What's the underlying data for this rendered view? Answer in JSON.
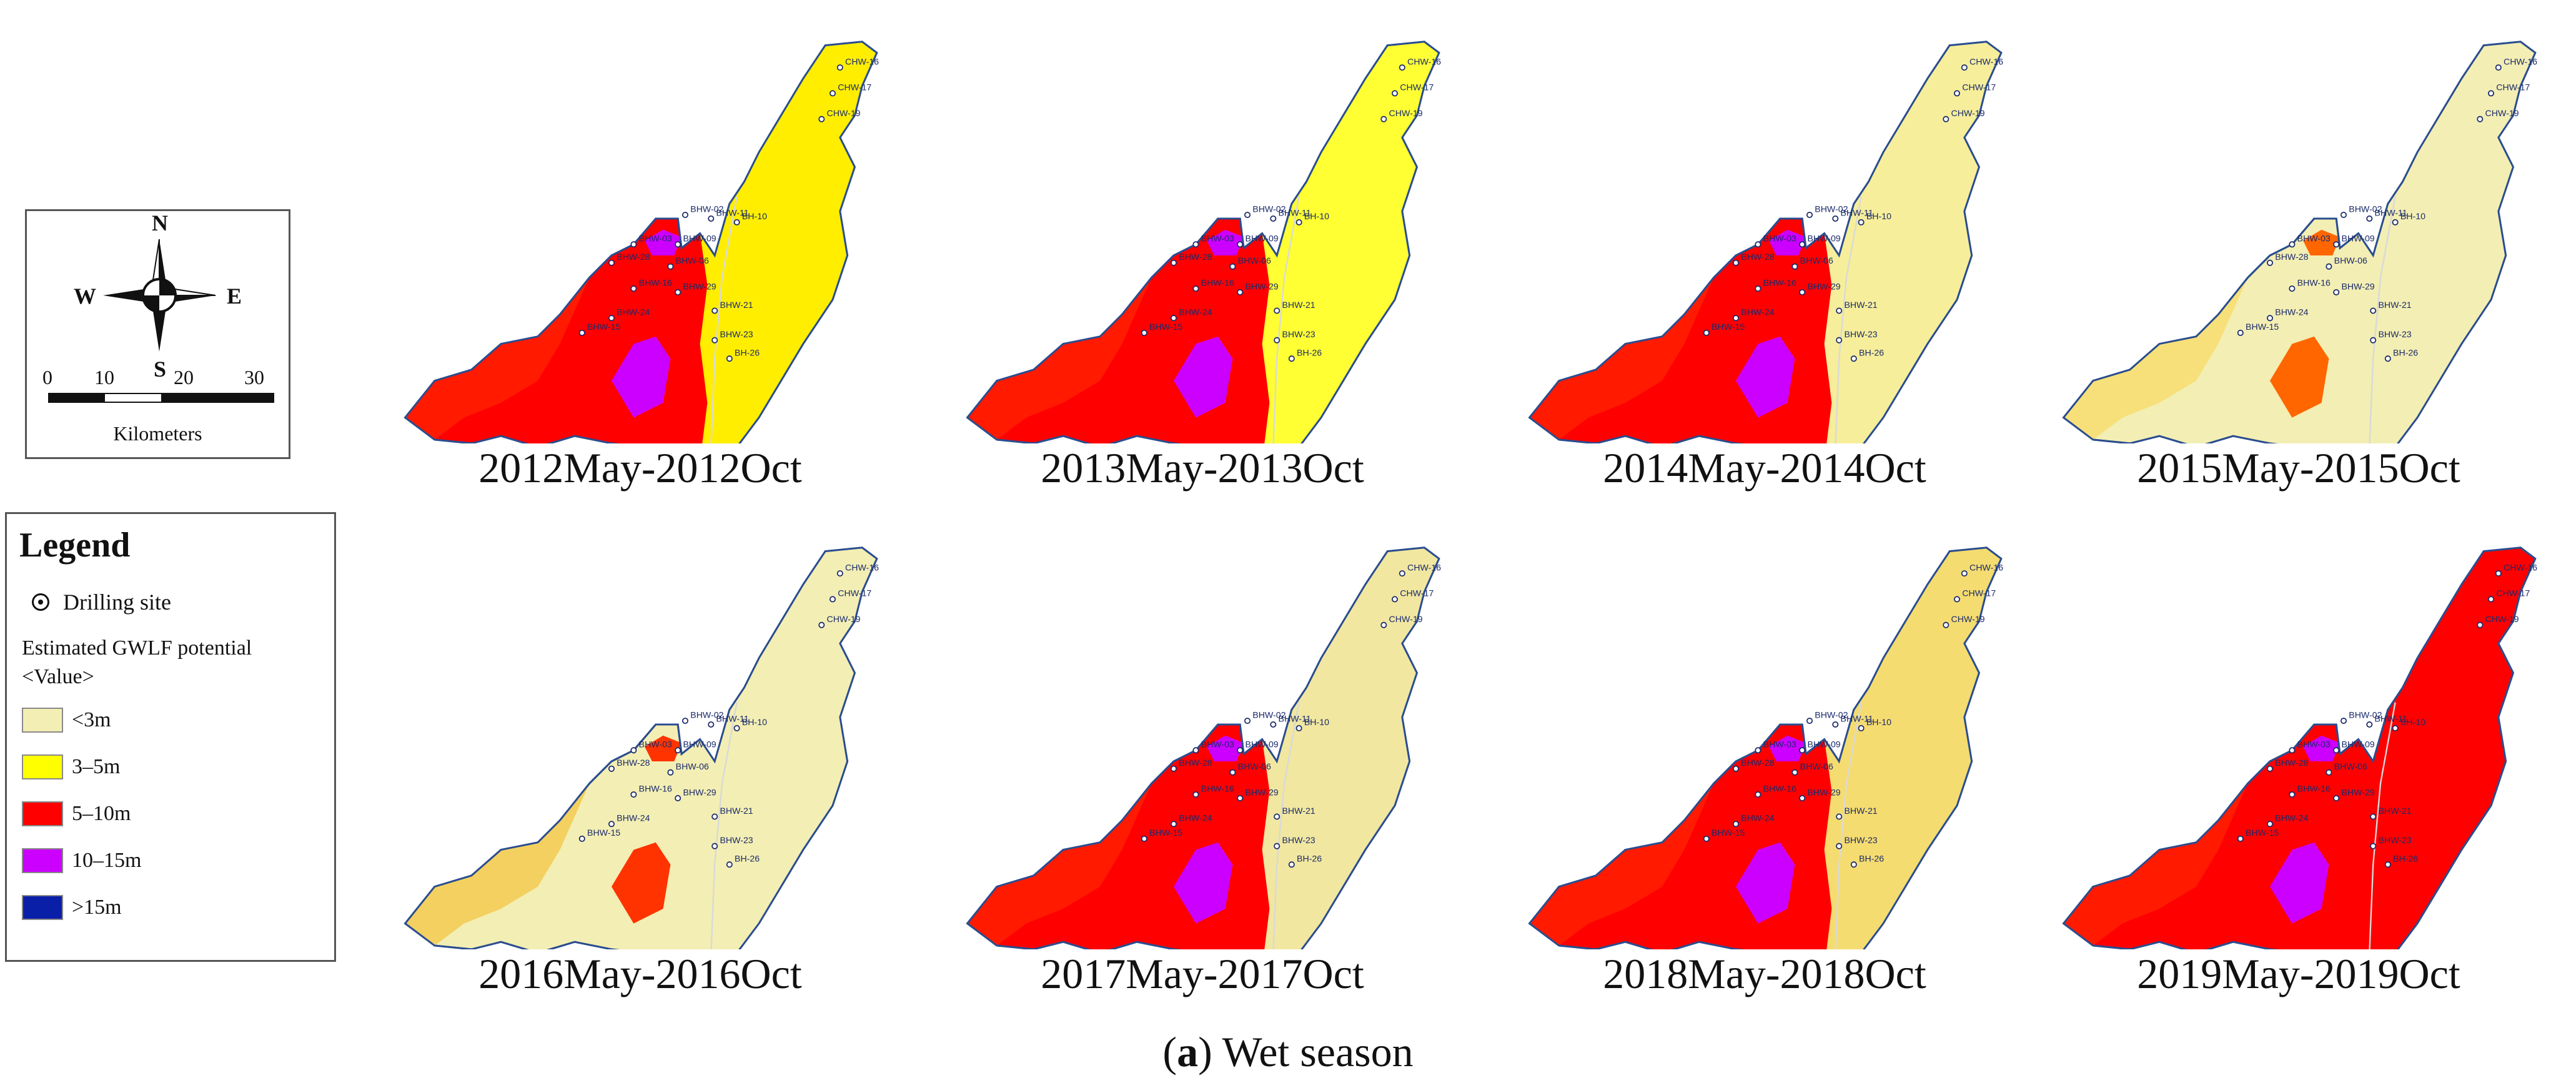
{
  "compass": {
    "north": "N",
    "south": "S",
    "east": "E",
    "west": "W",
    "scale_ticks": [
      "0",
      "10",
      "20",
      "30"
    ],
    "scale_unit": "Kilometers"
  },
  "legend": {
    "title": "Legend",
    "site_label": "Drilling site",
    "field_label": "Estimated GWLF potential",
    "value_label": "<Value>",
    "classes": [
      {
        "label": "<3m",
        "color": "#f3eeb3"
      },
      {
        "label": "3–5m",
        "color": "#ffff00"
      },
      {
        "label": "5–10m",
        "color": "#ff0000"
      },
      {
        "label": "10–15m",
        "color": "#cc00ff"
      },
      {
        "label": ">15m",
        "color": "#0a1fa8"
      }
    ]
  },
  "panels": [
    {
      "caption": "2012May-2012Oct",
      "base": "#ff0000",
      "east": "#ffee00",
      "west": "#ff1a00",
      "patch": "#cc00ff"
    },
    {
      "caption": "2013May-2013Oct",
      "base": "#ff0000",
      "east": "#ffff33",
      "west": "#ff1a00",
      "patch": "#cc00ff"
    },
    {
      "caption": "2014May-2014Oct",
      "base": "#ff0000",
      "east": "#f6ee9a",
      "west": "#ff1a00",
      "patch": "#cc00ff"
    },
    {
      "caption": "2015May-2015Oct",
      "base": "#f3eeb3",
      "east": "#f3eeb3",
      "west": "#f7e07a",
      "patch": "#ff6600"
    },
    {
      "caption": "2016May-2016Oct",
      "base": "#f3eeb3",
      "east": "#f3eeb3",
      "west": "#f3d060",
      "patch": "#ff3300"
    },
    {
      "caption": "2017May-2017Oct",
      "base": "#ff0000",
      "east": "#f1e7a0",
      "west": "#ff1a00",
      "patch": "#cc00ff"
    },
    {
      "caption": "2018May-2018Oct",
      "base": "#ff0000",
      "east": "#f5dc70",
      "west": "#ff1a00",
      "patch": "#cc00ff"
    },
    {
      "caption": "2019May-2019Oct",
      "base": "#ff0000",
      "east": "#ff0000",
      "west": "#ff1a00",
      "patch": "#cc00ff"
    }
  ],
  "site_labels": [
    "CHW-16",
    "CHW-17",
    "CHW-19",
    "BHW-02",
    "BHW-11",
    "BH-10",
    "BHW-03",
    "BHW-09",
    "BHW-28",
    "BHW-06",
    "BHW-16",
    "BHW-29",
    "BHW-21",
    "BHW-24",
    "BHW-15",
    "BHW-23",
    "BH-26"
  ],
  "figure_caption": {
    "letter": "a",
    "text": " Wet season"
  }
}
